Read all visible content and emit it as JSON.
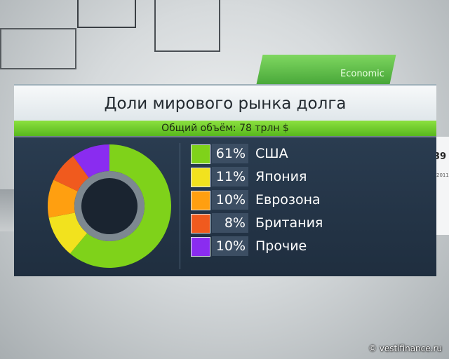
{
  "background": {
    "label": "Economic"
  },
  "side_panel": {
    "number": "39",
    "year": "2011"
  },
  "chart_data": {
    "type": "pie",
    "title": "Доли мирового рынка долга",
    "subtitle": "Общий объём: 78 трлн $",
    "slices": [
      {
        "label": "США",
        "value": 61,
        "display": "61%",
        "color": "#7fd21a"
      },
      {
        "label": "Япония",
        "value": 11,
        "display": "11%",
        "color": "#f2e21e"
      },
      {
        "label": "Еврозона",
        "value": 10,
        "display": "10%",
        "color": "#ff9f10"
      },
      {
        "label": "Британия",
        "value": 8,
        "display": "8%",
        "color": "#f05a1e"
      },
      {
        "label": "Прочие",
        "value": 10,
        "display": "10%",
        "color": "#8a2cf0"
      }
    ]
  },
  "credit": "© vestifinance.ru"
}
